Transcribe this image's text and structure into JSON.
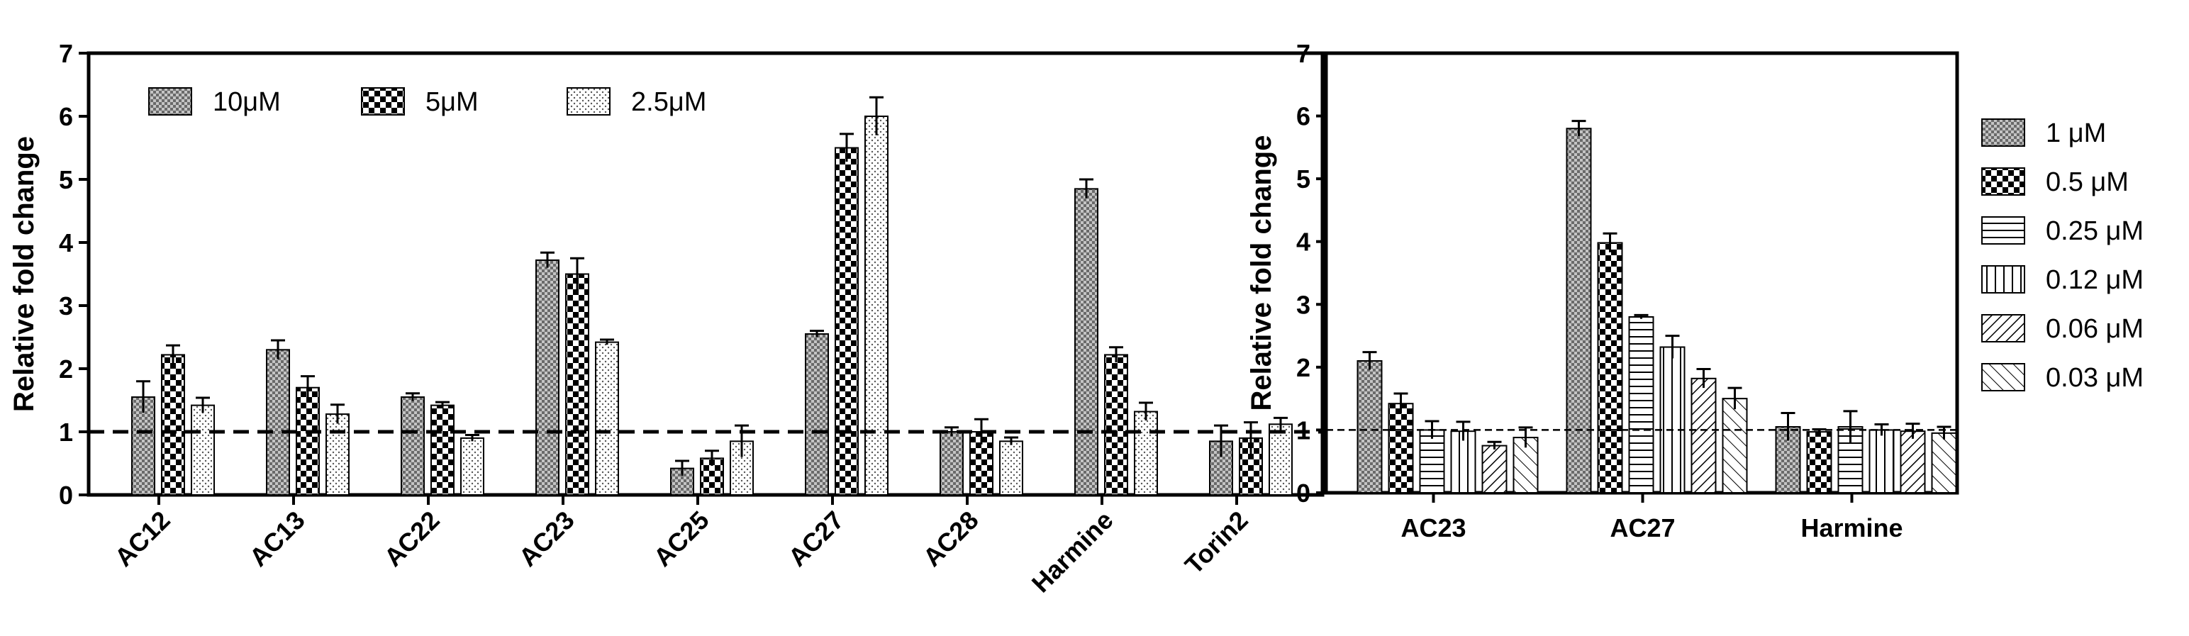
{
  "chart_data": [
    {
      "type": "bar",
      "title": "",
      "xlabel": "",
      "ylabel": "Relative fold change",
      "ylim": [
        0,
        7
      ],
      "yticks": [
        "0",
        "1",
        "2",
        "3",
        "4",
        "5",
        "6",
        "7"
      ],
      "reference_line": 1,
      "legend_position": "top-left (inside, horizontal)",
      "categories": [
        "AC12",
        "AC13",
        "AC22",
        "AC23",
        "AC25",
        "AC27",
        "AC28",
        "Harmine",
        "Torin2"
      ],
      "series": [
        {
          "name": "10μM",
          "pattern": "checker-fine",
          "values": [
            1.55,
            2.3,
            1.55,
            3.72,
            0.42,
            2.55,
            1.0,
            4.85,
            0.85
          ],
          "errors": [
            0.25,
            0.15,
            0.06,
            0.12,
            0.12,
            0.05,
            0.07,
            0.15,
            0.25
          ]
        },
        {
          "name": "5μM",
          "pattern": "checker-bold",
          "values": [
            2.22,
            1.7,
            1.42,
            3.5,
            0.58,
            5.5,
            1.0,
            2.22,
            0.9
          ],
          "errors": [
            0.15,
            0.18,
            0.05,
            0.25,
            0.12,
            0.22,
            0.2,
            0.12,
            0.25
          ]
        },
        {
          "name": "2.5μM",
          "pattern": "dots",
          "values": [
            1.42,
            1.28,
            0.9,
            2.42,
            0.85,
            6.0,
            0.85,
            1.32,
            1.12
          ],
          "errors": [
            0.12,
            0.15,
            0.05,
            0.04,
            0.25,
            0.3,
            0.06,
            0.14,
            0.1
          ]
        }
      ]
    },
    {
      "type": "bar",
      "title": "",
      "xlabel": "",
      "ylabel": "Relative fold change",
      "ylim": [
        0,
        7
      ],
      "yticks": [
        "0",
        "1",
        "2",
        "3",
        "4",
        "5",
        "6",
        "7"
      ],
      "reference_line": 1,
      "legend_position": "right (outside, vertical)",
      "categories": [
        "AC23",
        "AC27",
        "Harmine"
      ],
      "series": [
        {
          "name": "1 μM",
          "pattern": "checker-fine",
          "values": [
            2.1,
            5.8,
            1.05
          ],
          "errors": [
            0.14,
            0.12,
            0.22
          ]
        },
        {
          "name": "0.5 μM",
          "pattern": "checker-bold",
          "values": [
            1.42,
            3.98,
            0.97
          ],
          "errors": [
            0.16,
            0.15,
            0.04
          ]
        },
        {
          "name": "0.25 μM",
          "pattern": "hlines",
          "values": [
            1.0,
            2.8,
            1.05
          ],
          "errors": [
            0.14,
            0.03,
            0.25
          ]
        },
        {
          "name": "0.12 μM",
          "pattern": "vlines",
          "values": [
            0.98,
            2.32,
            1.0
          ],
          "errors": [
            0.15,
            0.18,
            0.09
          ]
        },
        {
          "name": "0.06 μM",
          "pattern": "diag-right",
          "values": [
            0.75,
            1.82,
            0.98
          ],
          "errors": [
            0.06,
            0.15,
            0.12
          ]
        },
        {
          "name": "0.03 μM",
          "pattern": "diag-left",
          "values": [
            0.88,
            1.5,
            0.95
          ],
          "errors": [
            0.16,
            0.17,
            0.1
          ]
        }
      ]
    }
  ]
}
